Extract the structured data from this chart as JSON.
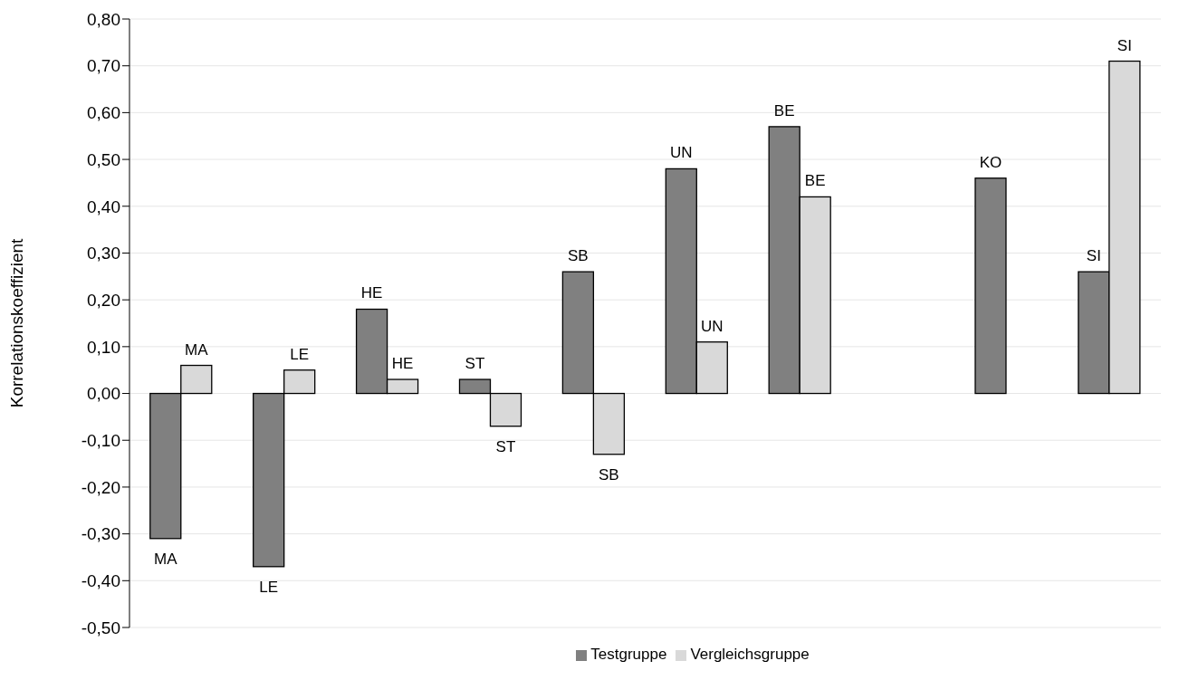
{
  "chart_data": {
    "type": "bar",
    "ylabel": "Korrelationskoeffizient",
    "categories": [
      null,
      null,
      null,
      null,
      null,
      null,
      null,
      null,
      null,
      null
    ],
    "series": [
      {
        "name": "Testgruppe",
        "color": "#808080",
        "values": [
          -0.31,
          -0.37,
          0.18,
          0.03,
          0.26,
          0.48,
          0.57,
          null,
          0.46,
          0.26
        ],
        "value_labels": [
          "MA",
          "LE",
          "HE",
          "ST",
          "SB",
          "UN",
          "BE",
          null,
          "KO",
          "SI"
        ]
      },
      {
        "name": "Vergleichsgruppe",
        "color": "#d9d9d9",
        "values": [
          0.06,
          0.05,
          0.03,
          -0.07,
          -0.13,
          0.11,
          0.42,
          null,
          null,
          0.71
        ],
        "value_labels": [
          "MA",
          "LE",
          "HE",
          "ST",
          "SB",
          "UN",
          "BE",
          null,
          null,
          "SI"
        ]
      }
    ],
    "ylim": [
      -0.5,
      0.8
    ],
    "yticks": [
      {
        "value": -0.5,
        "label": "-0,50"
      },
      {
        "value": -0.4,
        "label": "-0,40"
      },
      {
        "value": -0.3,
        "label": "-0,30"
      },
      {
        "value": -0.2,
        "label": "-0,20"
      },
      {
        "value": -0.1,
        "label": "-0,10"
      },
      {
        "value": 0,
        "label": "0,00"
      },
      {
        "value": 0.1,
        "label": "0,10"
      },
      {
        "value": 0.2,
        "label": "0,20"
      },
      {
        "value": 0.3,
        "label": "0,30"
      },
      {
        "value": 0.4,
        "label": "0,40"
      },
      {
        "value": 0.5,
        "label": "0,50"
      },
      {
        "value": 0.6,
        "label": "0,60"
      },
      {
        "value": 0.7,
        "label": "0,70"
      },
      {
        "value": 0.8,
        "label": "0,80"
      }
    ],
    "grid": "y",
    "legend": "bottom",
    "tick_labels": "y"
  }
}
